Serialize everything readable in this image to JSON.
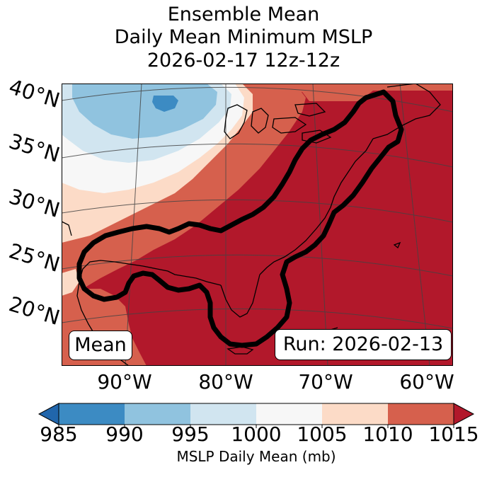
{
  "title": {
    "line1": "Ensemble Mean",
    "line2": "Daily Mean Minimum MSLP",
    "line3": "2026-02-17 12z-12z"
  },
  "map": {
    "lat_labels": [
      "40°N",
      "35°N",
      "30°N",
      "25°N",
      "20°N"
    ],
    "lon_labels": [
      "90°W",
      "80°W",
      "70°W",
      "60°W"
    ],
    "mean_label": "Mean",
    "run_label": "Run: 2026-02-13"
  },
  "colorbar": {
    "ticks": [
      "985",
      "990",
      "995",
      "1000",
      "1005",
      "1010",
      "1015"
    ],
    "label": "MSLP Daily Mean (mb)",
    "colors": [
      "#3c8bc3",
      "#90c3df",
      "#d1e5f0",
      "#f7f7f7",
      "#fcdbc7",
      "#d6604d",
      "#b2182b"
    ],
    "under_color": "#2166ac",
    "over_color": "#b2182b"
  }
}
